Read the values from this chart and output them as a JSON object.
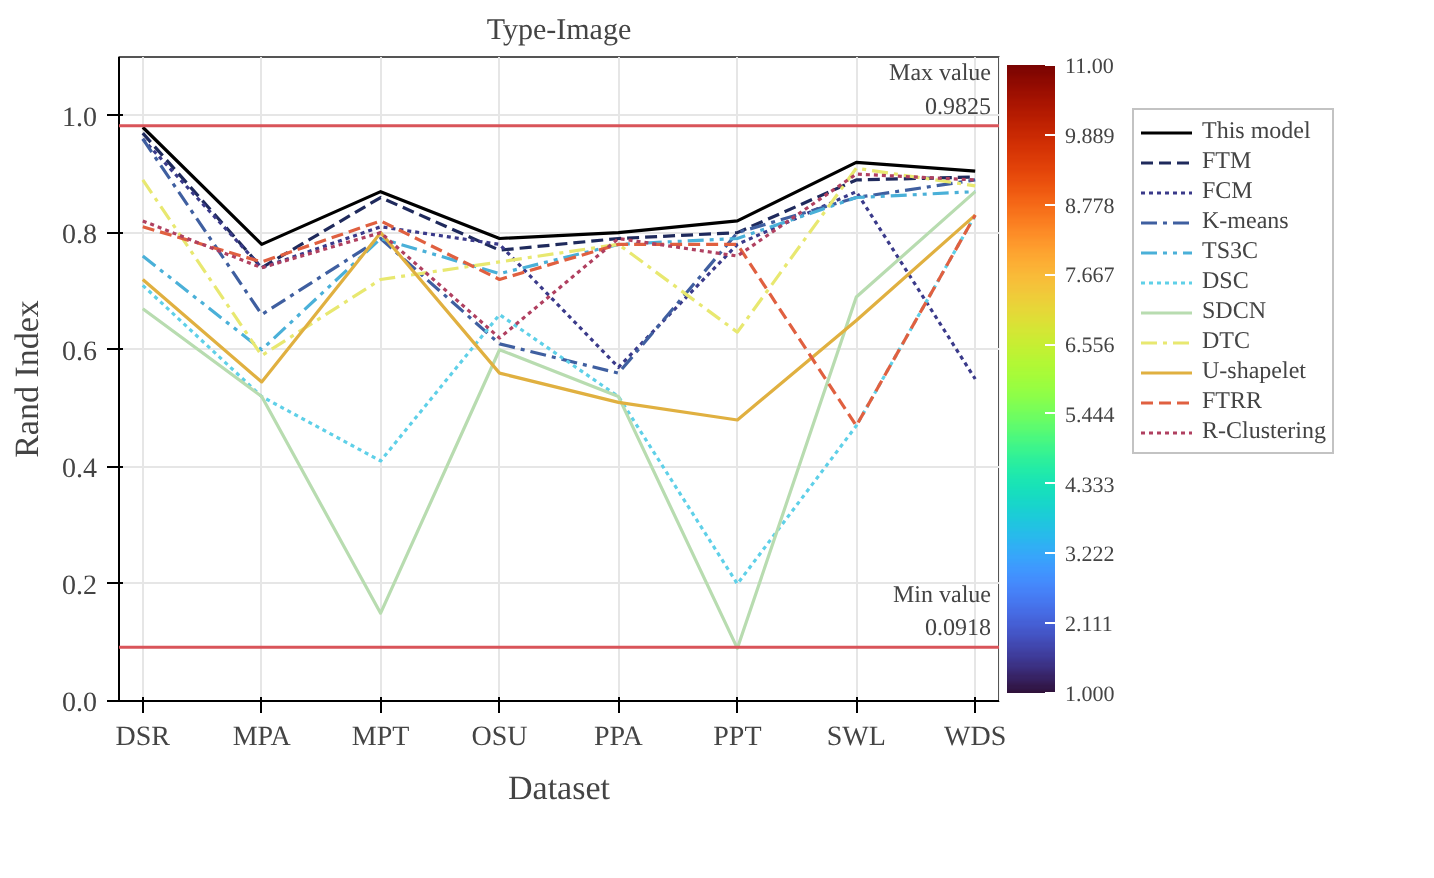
{
  "chart_data": {
    "type": "line",
    "title": "Type-Image",
    "xlabel": "Dataset",
    "ylabel": "Rand Index",
    "categories": [
      "DSR",
      "MPA",
      "MPT",
      "OSU",
      "PPA",
      "PPT",
      "SWL",
      "WDS"
    ],
    "series": [
      {
        "name": "This model",
        "color": "#000000",
        "line_style": "solid",
        "values": [
          0.98,
          0.78,
          0.87,
          0.79,
          0.8,
          0.82,
          0.92,
          0.905
        ]
      },
      {
        "name": "FTM",
        "color": "#1f2a5c",
        "line_style": "dashed",
        "values": [
          0.97,
          0.74,
          0.86,
          0.77,
          0.79,
          0.8,
          0.89,
          0.895
        ]
      },
      {
        "name": "FCM",
        "color": "#3a3a8a",
        "line_style": "dotted",
        "values": [
          0.96,
          0.74,
          0.81,
          0.78,
          0.57,
          0.78,
          0.87,
          0.55
        ]
      },
      {
        "name": "K-means",
        "color": "#3f5fa0",
        "line_style": "dashdot",
        "values": [
          0.96,
          0.66,
          0.79,
          0.61,
          0.56,
          0.8,
          0.86,
          0.89
        ]
      },
      {
        "name": "TS3C",
        "color": "#4ab0d8",
        "line_style": "dashdotdot",
        "values": [
          0.76,
          0.6,
          0.79,
          0.73,
          0.78,
          0.79,
          0.86,
          0.87
        ]
      },
      {
        "name": "DSC",
        "color": "#5fd0e8",
        "line_style": "dotted",
        "values": [
          0.71,
          0.52,
          0.41,
          0.66,
          0.52,
          0.2,
          0.47,
          0.83
        ]
      },
      {
        "name": "SDCN",
        "color": "#b8dcb0",
        "line_style": "solid",
        "values": [
          0.67,
          0.52,
          0.15,
          0.6,
          0.52,
          0.09,
          0.69,
          0.87
        ]
      },
      {
        "name": "DTC",
        "color": "#e8e870",
        "line_style": "dashdot",
        "values": [
          0.89,
          0.59,
          0.72,
          0.75,
          0.78,
          0.63,
          0.91,
          0.88
        ]
      },
      {
        "name": "U-shapelet",
        "color": "#e0b040",
        "line_style": "solid",
        "values": [
          0.72,
          0.545,
          0.8,
          0.56,
          0.51,
          0.48,
          0.65,
          0.83
        ]
      },
      {
        "name": "FTRR",
        "color": "#e06040",
        "line_style": "dashed",
        "values": [
          0.81,
          0.75,
          0.82,
          0.72,
          0.78,
          0.78,
          0.47,
          0.83
        ]
      },
      {
        "name": "R-Clustering",
        "color": "#b04060",
        "line_style": "dotted",
        "values": [
          0.82,
          0.74,
          0.8,
          0.62,
          0.79,
          0.76,
          0.9,
          0.89
        ]
      }
    ],
    "ylim": [
      0,
      1.1
    ],
    "yticks": [
      {
        "value": 0,
        "label": "0.0"
      },
      0.2,
      0.4,
      0.6,
      0.8,
      {
        "value": 1,
        "label": "1.0"
      }
    ],
    "ref_lines": [
      {
        "axis": "y",
        "value": 0.9825,
        "label": "Max value\n0.9825",
        "color": "#d9545a"
      },
      {
        "axis": "y",
        "value": 0.0918,
        "label": "Min value\n0.0918",
        "color": "#d9545a"
      }
    ],
    "clim": [
      1,
      11
    ],
    "cticks": [
      {
        "value": 1,
        "label": "1.000"
      },
      {
        "value": 2.111,
        "label": "2.111"
      },
      {
        "value": 3.222,
        "label": "3.222"
      },
      {
        "value": 4.333,
        "label": "4.333"
      },
      {
        "value": 5.444,
        "label": "5.444"
      },
      {
        "value": 6.556,
        "label": "6.556"
      },
      {
        "value": 7.667,
        "label": "7.667"
      },
      {
        "value": 8.778,
        "label": "8.778"
      },
      {
        "value": 9.889,
        "label": "9.889"
      },
      {
        "value": 11,
        "label": "11.00"
      }
    ],
    "grid": true,
    "legend": "right"
  }
}
